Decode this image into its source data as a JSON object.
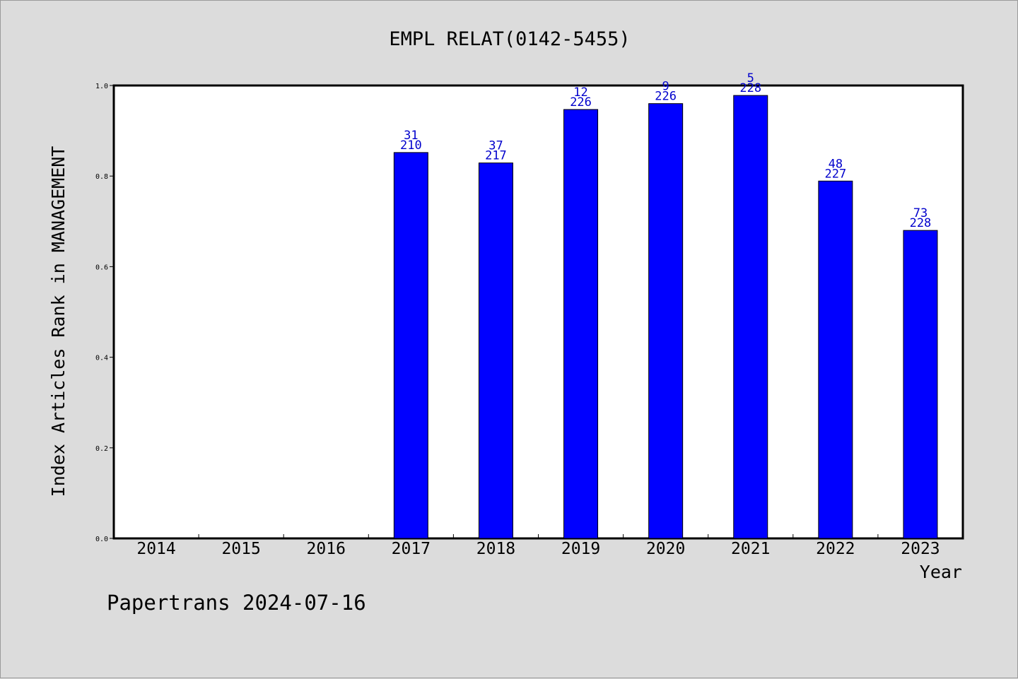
{
  "footer": "Papertrans 2024-07-16",
  "colors": {
    "background": "#dcdcdc",
    "plot_bg": "#ffffff",
    "bar": "#0000ff",
    "bar_label": "#0000cc",
    "axis": "#000000"
  },
  "chart_data": {
    "type": "bar",
    "title": "EMPL RELAT(0142-5455)",
    "xlabel": "Year",
    "ylabel": "Index Articles Rank in MANAGEMENT",
    "ylim": [
      0,
      1.0
    ],
    "yticks": [
      "0.0",
      "0.2",
      "0.4",
      "0.6",
      "0.8",
      "1.0"
    ],
    "grid": false,
    "categories": [
      "2014",
      "2015",
      "2016",
      "2017",
      "2018",
      "2019",
      "2020",
      "2021",
      "2022",
      "2023"
    ],
    "values": [
      null,
      null,
      null,
      0.852,
      0.829,
      0.947,
      0.96,
      0.978,
      0.789,
      0.68
    ],
    "rank_labels": [
      null,
      null,
      null,
      "31",
      "37",
      "12",
      "9",
      "5",
      "48",
      "73"
    ],
    "total_labels": [
      null,
      null,
      null,
      "210",
      "217",
      "226",
      "226",
      "228",
      "227",
      "228"
    ]
  }
}
